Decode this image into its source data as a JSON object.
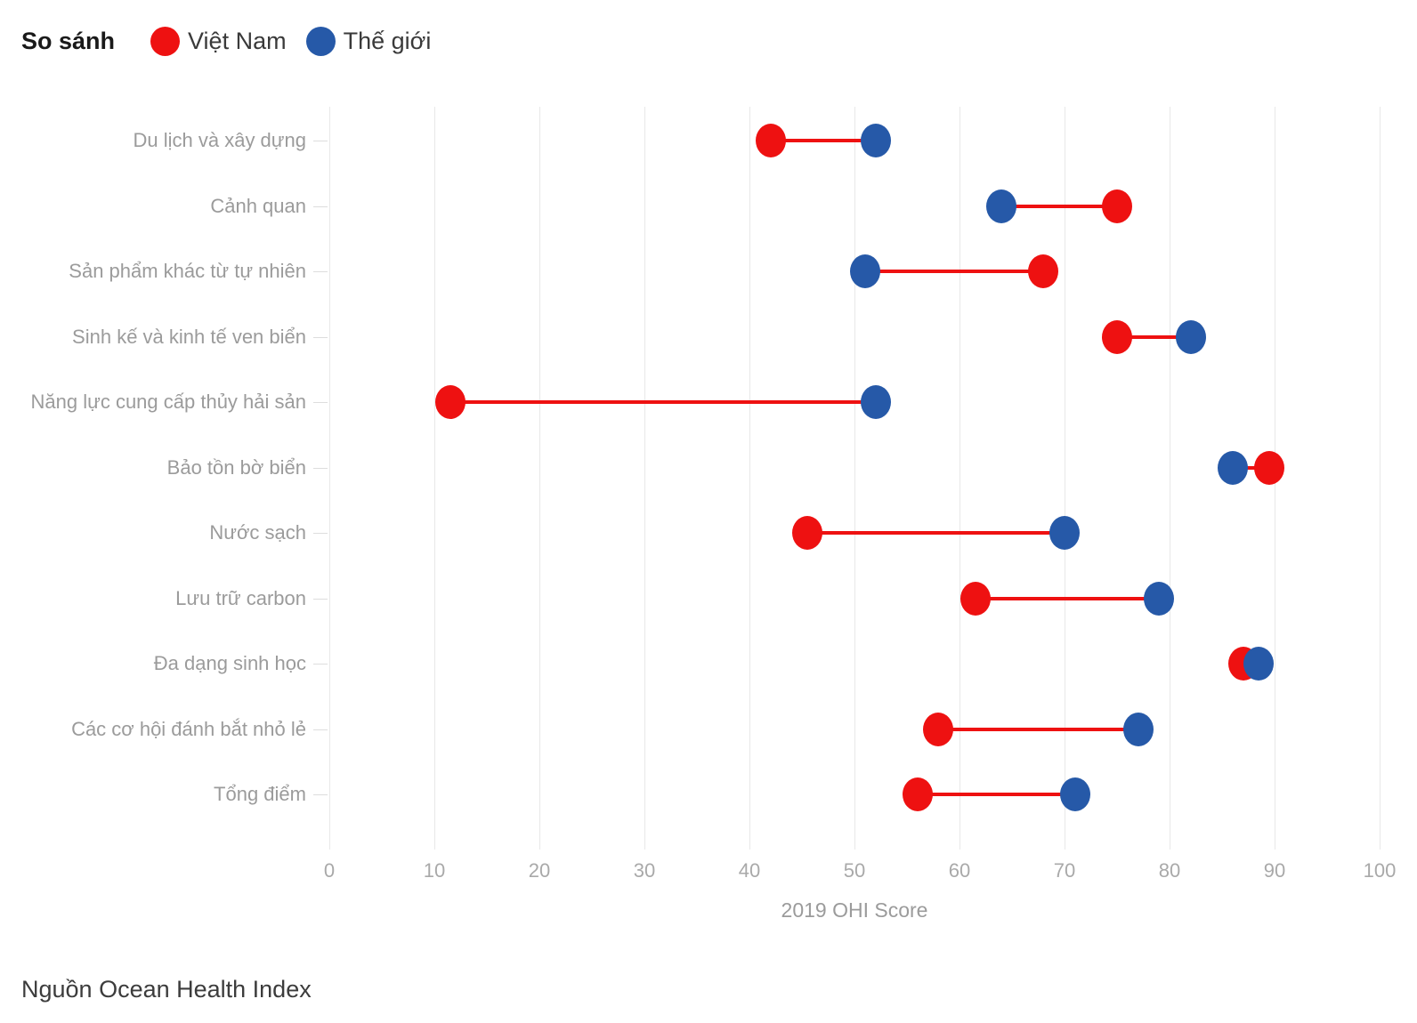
{
  "legend": {
    "title": "So sánh",
    "items": [
      {
        "label": "Việt Nam",
        "color": "#ee1111"
      },
      {
        "label": "Thế giới",
        "color": "#2659a8"
      }
    ]
  },
  "chart_data": {
    "type": "dumbbell",
    "title": "",
    "xlabel": "2019 OHI Score",
    "xlim": [
      0,
      100
    ],
    "x_ticks": [
      0,
      10,
      20,
      30,
      40,
      50,
      60,
      70,
      80,
      90,
      100
    ],
    "grid": true,
    "legend_position": "top-left",
    "connector_color": "#ee1111",
    "categories": [
      "Du lịch và xây dựng",
      "Cảnh quan",
      "Sản phẩm khác từ tự nhiên",
      "Sinh kế và kinh tế ven biển",
      "Năng lực cung cấp thủy hải sản",
      "Bảo tồn bờ biển",
      "Nước sạch",
      "Lưu trữ carbon",
      "Đa dạng sinh học",
      "Các cơ hội đánh bắt nhỏ lẻ",
      "Tổng điểm"
    ],
    "series": [
      {
        "name": "Việt Nam",
        "color": "#ee1111",
        "values": [
          42,
          75,
          68,
          75,
          11.5,
          89.5,
          45.5,
          61.5,
          87,
          58,
          56
        ]
      },
      {
        "name": "Thế giới",
        "color": "#2659a8",
        "values": [
          52,
          64,
          51,
          82,
          52,
          86,
          70,
          79,
          88.5,
          77,
          71
        ]
      }
    ]
  },
  "footer": {
    "source": "Nguồn Ocean Health Index"
  }
}
